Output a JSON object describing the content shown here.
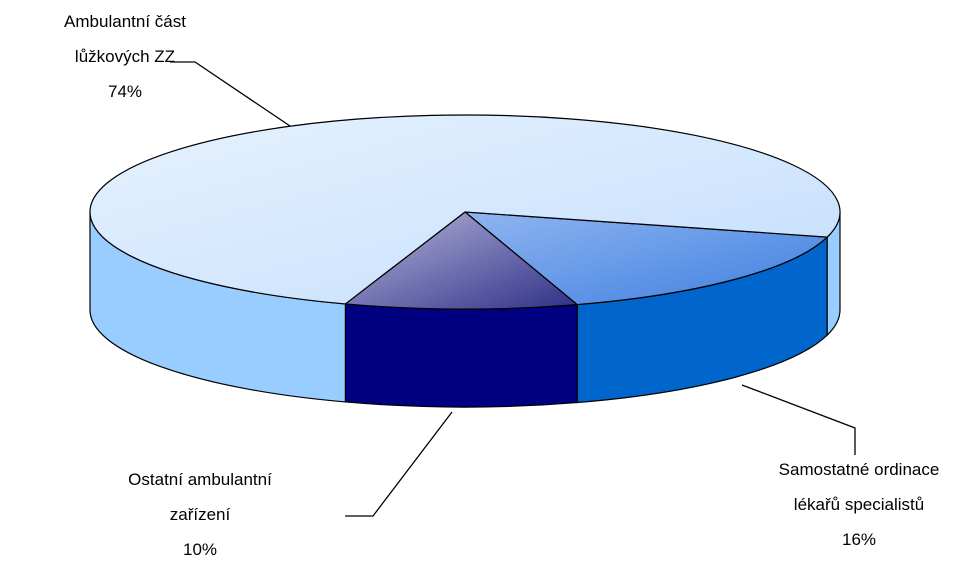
{
  "chart_data": {
    "type": "pie",
    "categories": [
      "Samostatné ordinace lékařů specialistů",
      "Ostatní ambulantní zařízení",
      "Ambulantní část lůžkových ZZ"
    ],
    "values": [
      16,
      10,
      74
    ],
    "value_labels": [
      "16%",
      "10%",
      "74%"
    ],
    "colors": [
      "#0066cc",
      "#000080",
      "#99ccff"
    ]
  }
}
